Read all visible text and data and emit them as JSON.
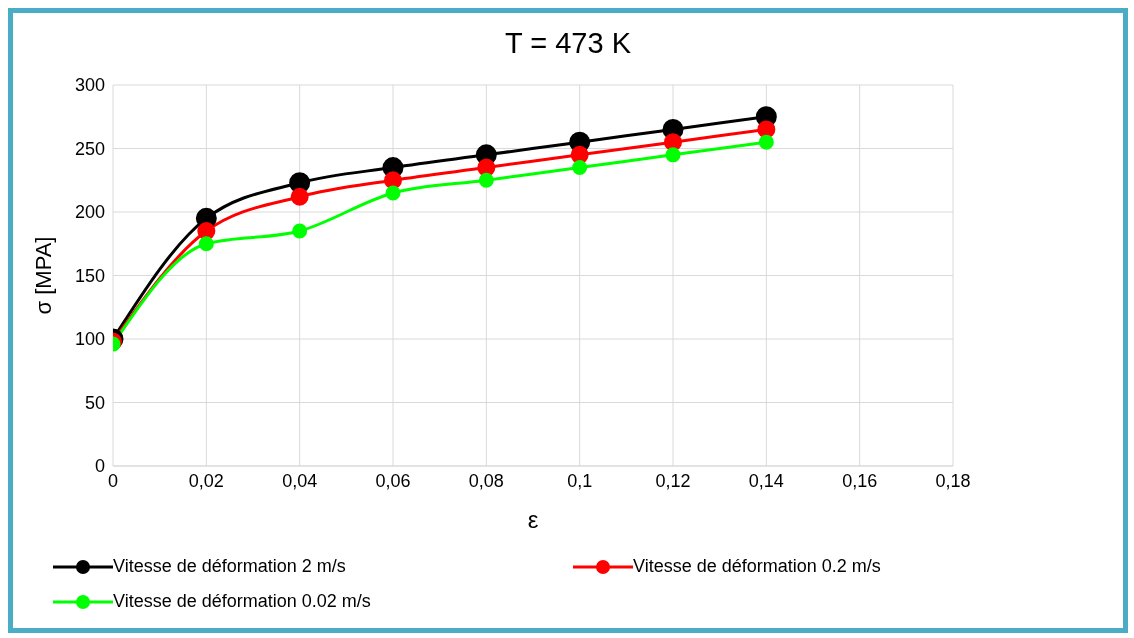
{
  "chart_data": {
    "type": "line",
    "title": "T = 473 K",
    "xlabel": "ε",
    "ylabel": "σ [MPA]",
    "x": [
      0,
      0.02,
      0.04,
      0.06,
      0.08,
      0.1,
      0.12,
      0.14
    ],
    "series": [
      {
        "name": "Vitesse de déformation 2 m/s",
        "color": "#000000",
        "values": [
          100,
          195,
          223,
          235,
          245,
          255,
          265,
          275
        ]
      },
      {
        "name": "Vitesse de déformation 0.2 m/s",
        "color": "#ff0000",
        "values": [
          98,
          185,
          212,
          225,
          235,
          245,
          255,
          265
        ]
      },
      {
        "name": "Vitesse de déformation 0.02 m/s",
        "color": "#00ff00",
        "values": [
          96,
          175,
          185,
          215,
          225,
          235,
          245,
          255
        ]
      }
    ],
    "xlim": [
      0,
      0.18
    ],
    "xticks": [
      {
        "value": 0,
        "label": "0"
      },
      {
        "value": 0.02,
        "label": "0,02"
      },
      {
        "value": 0.04,
        "label": "0,04"
      },
      {
        "value": 0.06,
        "label": "0,06"
      },
      {
        "value": 0.08,
        "label": "0,08"
      },
      {
        "value": 0.1,
        "label": "0,1"
      },
      {
        "value": 0.12,
        "label": "0,12"
      },
      {
        "value": 0.14,
        "label": "0,14"
      },
      {
        "value": 0.16,
        "label": "0,16"
      },
      {
        "value": 0.18,
        "label": "0,18"
      }
    ],
    "ylim": [
      0,
      300
    ],
    "yticks": [
      0,
      50,
      100,
      150,
      200,
      250,
      300
    ],
    "grid": true,
    "legend": "bottom",
    "marker": "circle",
    "line_style": "solid"
  }
}
